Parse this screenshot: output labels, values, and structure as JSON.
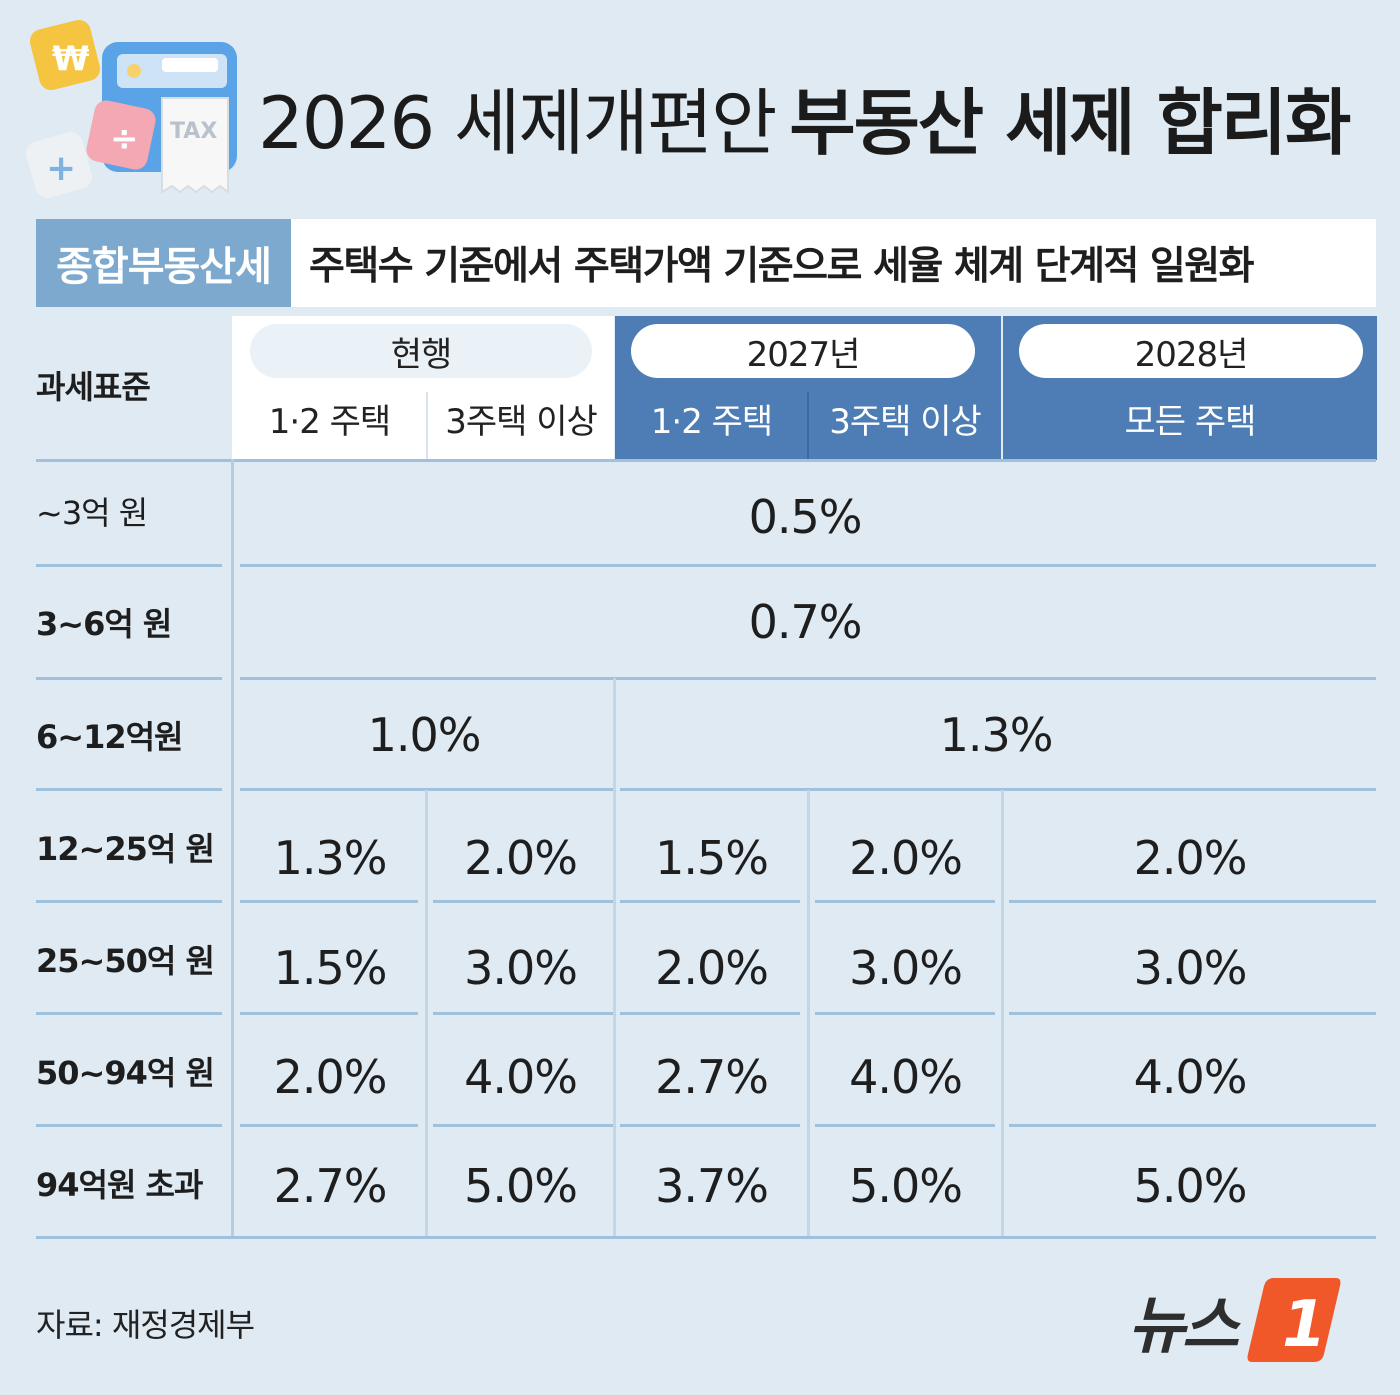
{
  "header": {
    "title_light": "2026 세제개편안",
    "title_bold": "부동산 세제 합리화",
    "illustration_label": "TAX"
  },
  "topic": {
    "label": "종합부동산세",
    "description": "주택수 기준에서 주택가액 기준으로 세율 체계 단계적 일원화"
  },
  "table": {
    "row_header": "과세표준",
    "groups": {
      "current": {
        "label": "현행",
        "sub1": "1·2 주택",
        "sub2": "3주택 이상"
      },
      "y2027": {
        "label": "2027년",
        "sub1": "1·2 주택",
        "sub2": "3주택 이상"
      },
      "y2028": {
        "label": "2028년",
        "sub1": "모든 주택"
      }
    },
    "rows": [
      {
        "label": "~3억 원",
        "merged_all": "0.5%"
      },
      {
        "label": "3~6억 원",
        "merged_all": "0.7%"
      },
      {
        "label": "6~12억원",
        "merged_current": "1.0%",
        "merged_future": "1.3%"
      },
      {
        "label": "12~25억 원",
        "values": [
          "1.3%",
          "2.0%",
          "1.5%",
          "2.0%",
          "2.0%"
        ]
      },
      {
        "label": "25~50억 원",
        "values": [
          "1.5%",
          "3.0%",
          "2.0%",
          "3.0%",
          "3.0%"
        ]
      },
      {
        "label": "50~94억 원",
        "values": [
          "2.0%",
          "4.0%",
          "2.7%",
          "4.0%",
          "4.0%"
        ]
      },
      {
        "label": "94억원 초과",
        "values": [
          "2.7%",
          "5.0%",
          "3.7%",
          "5.0%",
          "5.0%"
        ]
      }
    ]
  },
  "footer": {
    "source": "자료: 재정경제부",
    "logo_text": "뉴스",
    "logo_badge": "1"
  },
  "colors": {
    "background": "#dfeaf3",
    "accent_blue": "#4d7db4",
    "label_blue": "#7da9cf",
    "line": "#9fc1dd",
    "logo_orange": "#f0582a"
  }
}
